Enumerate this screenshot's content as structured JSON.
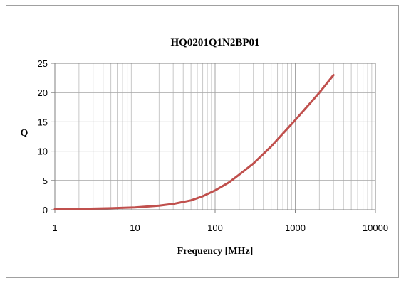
{
  "chart_data": {
    "type": "line",
    "title": "HQ0201Q1N2BP01",
    "xlabel": "Frequency [MHz]",
    "ylabel": "Q",
    "x_scale": "log",
    "xlim": [
      1,
      10000
    ],
    "ylim": [
      0,
      25
    ],
    "x_ticks": [
      "1",
      "10",
      "100",
      "1000",
      "10000"
    ],
    "y_ticks": [
      "0",
      "5",
      "10",
      "15",
      "20",
      "25"
    ],
    "grid": true,
    "series_color": "#c0504d",
    "series": [
      {
        "x": [
          1,
          2,
          5,
          10,
          20,
          30,
          50,
          70,
          100,
          150,
          200,
          300,
          500,
          700,
          1000,
          2000,
          3000
        ],
        "y": [
          0.1,
          0.15,
          0.25,
          0.4,
          0.7,
          1.0,
          1.6,
          2.3,
          3.3,
          4.7,
          6.0,
          7.9,
          10.8,
          13.0,
          15.3,
          20.0,
          23.0
        ]
      }
    ]
  }
}
